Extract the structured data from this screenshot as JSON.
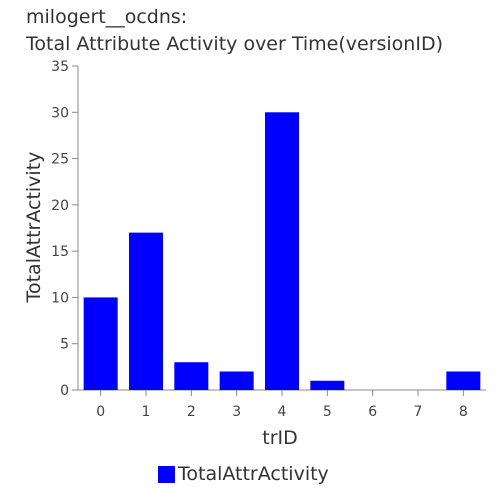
{
  "chart_data": {
    "type": "bar",
    "title": "milogert__ocdns:",
    "subtitle": "Total Attribute Activity over Time(versionID)",
    "xlabel": "trID",
    "ylabel": "TotalAttrActivity",
    "categories": [
      "0",
      "1",
      "2",
      "3",
      "4",
      "5",
      "6",
      "7",
      "8"
    ],
    "series": [
      {
        "name": "TotalAttrActivity",
        "values": [
          10,
          17,
          3,
          2,
          30,
          1,
          0,
          0,
          2
        ],
        "color": "#0000ff"
      }
    ],
    "ylim": [
      0,
      35
    ],
    "yticks": [
      "0",
      "5",
      "10",
      "15",
      "20",
      "25",
      "30",
      "35"
    ],
    "grid": false,
    "legend_position": "bottom-center"
  }
}
